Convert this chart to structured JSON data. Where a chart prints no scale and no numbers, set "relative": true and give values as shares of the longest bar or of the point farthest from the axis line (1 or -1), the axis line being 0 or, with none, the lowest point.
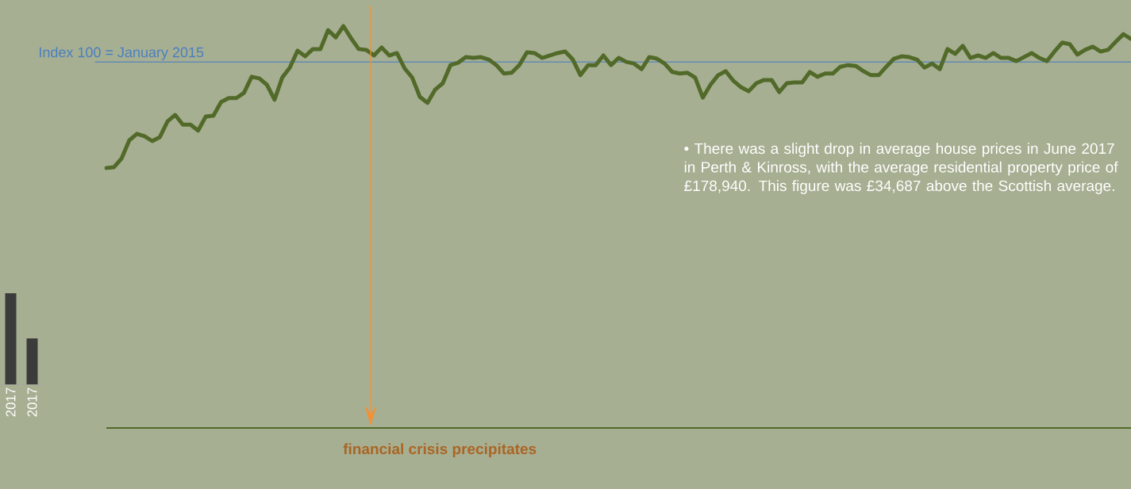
{
  "chart_data": [
    {
      "type": "bar",
      "relative": true,
      "categories": [
        "2017",
        "2017"
      ],
      "color": "#3b3b3b",
      "values": [
        1,
        0.504
      ]
    },
    {
      "type": "line",
      "relative": true,
      "color": "#526a29",
      "categories": [
        null,
        null,
        null,
        null,
        null,
        null,
        null,
        null,
        null,
        null,
        null,
        null,
        null,
        null,
        null,
        null,
        null,
        null,
        null,
        null,
        null,
        null,
        null,
        null,
        null,
        null,
        null,
        null,
        null,
        null,
        null,
        null,
        null,
        null,
        null,
        null,
        null,
        null,
        null,
        null,
        null,
        null,
        null,
        null,
        null,
        null,
        null,
        null,
        null,
        null,
        null,
        null,
        null,
        null,
        null,
        null,
        null,
        null,
        null,
        null,
        null,
        null,
        null,
        null,
        null,
        null,
        null,
        null,
        null,
        null,
        null,
        null,
        null,
        null,
        null,
        null,
        null,
        null,
        null,
        null,
        null,
        null,
        null,
        null,
        null,
        null,
        null,
        null,
        null,
        null,
        null,
        null,
        null,
        null,
        null,
        null,
        null,
        null,
        null,
        null,
        null,
        null,
        null,
        null,
        null,
        null,
        null,
        null,
        null,
        null,
        null,
        null,
        null,
        null,
        null,
        null,
        null,
        null,
        null,
        null,
        null,
        null,
        null,
        null,
        null,
        null,
        null,
        null,
        null,
        null,
        null,
        null,
        null,
        null,
        null
      ],
      "values": [
        0.647,
        0.649,
        0.671,
        0.716,
        0.732,
        0.726,
        0.714,
        0.724,
        0.763,
        0.779,
        0.755,
        0.755,
        0.74,
        0.775,
        0.777,
        0.811,
        0.821,
        0.821,
        0.834,
        0.874,
        0.87,
        0.854,
        0.817,
        0.872,
        0.897,
        0.939,
        0.925,
        0.943,
        0.943,
        0.99,
        0.972,
        1,
        0.97,
        0.943,
        0.941,
        0.927,
        0.947,
        0.927,
        0.933,
        0.895,
        0.872,
        0.824,
        0.809,
        0.842,
        0.858,
        0.903,
        0.909,
        0.923,
        0.921,
        0.923,
        0.917,
        0.903,
        0.882,
        0.884,
        0.903,
        0.935,
        0.933,
        0.921,
        0.927,
        0.933,
        0.937,
        0.917,
        0.878,
        0.903,
        0.903,
        0.927,
        0.903,
        0.921,
        0.911,
        0.907,
        0.893,
        0.923,
        0.919,
        0.907,
        0.886,
        0.882,
        0.884,
        0.872,
        0.822,
        0.854,
        0.878,
        0.888,
        0.864,
        0.848,
        0.838,
        0.858,
        0.866,
        0.866,
        0.836,
        0.858,
        0.86,
        0.86,
        0.886,
        0.874,
        0.882,
        0.882,
        0.899,
        0.903,
        0.901,
        0.888,
        0.878,
        0.878,
        0.899,
        0.919,
        0.925,
        0.923,
        0.917,
        0.897,
        0.907,
        0.893,
        0.943,
        0.931,
        0.951,
        0.921,
        0.927,
        0.921,
        0.933,
        0.921,
        0.921,
        0.913,
        0.923,
        0.933,
        0.921,
        0.913,
        0.937,
        0.959,
        0.955,
        0.929,
        0.941,
        0.949,
        0.937,
        0.941,
        0.961,
        0.98,
        0.968
      ],
      "ref_lines": [
        {
          "axis": "y",
          "value": 0.911,
          "label": "Index 100 = January 2015",
          "color": "#4a7fc1"
        }
      ],
      "annotations": [
        "• There was a slight drop in average house prices in June 2017 in Perth & Kinross, with the average residential property price of £178,940. This figure was £34,687 above the Scottish average.",
        "financial crisis precipitates"
      ]
    }
  ]
}
